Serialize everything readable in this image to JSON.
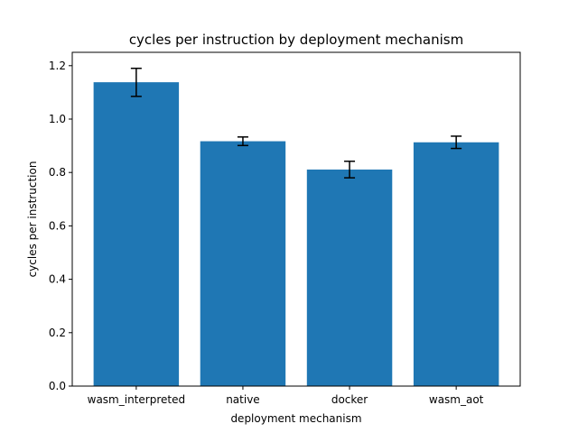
{
  "chart_data": {
    "type": "bar",
    "title": "cycles per instruction by deployment mechanism",
    "xlabel": "deployment mechanism",
    "ylabel": "cycles per instruction",
    "categories": [
      "wasm_interpreted",
      "native",
      "docker",
      "wasm_aot"
    ],
    "values": [
      1.138,
      0.917,
      0.811,
      0.913
    ],
    "error_low": [
      1.085,
      0.901,
      0.78,
      0.89
    ],
    "error_high": [
      1.19,
      0.933,
      0.842,
      0.936
    ],
    "ylim": [
      0,
      1.25
    ],
    "yticks": [
      "0.0",
      "0.2",
      "0.4",
      "0.6",
      "0.8",
      "1.0",
      "1.2"
    ],
    "grid": false,
    "bar_color": "#1f77b4"
  }
}
